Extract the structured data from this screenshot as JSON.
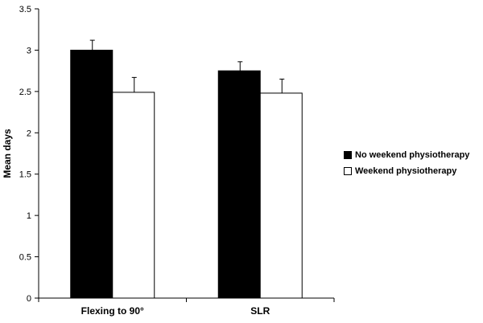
{
  "chart_data": {
    "type": "bar",
    "title": "",
    "xlabel": "",
    "ylabel": "Mean days",
    "categories": [
      "Flexing to 90°",
      "SLR"
    ],
    "series": [
      {
        "name": "No weekend physiotherapy",
        "values": [
          3.0,
          2.75
        ],
        "errors": [
          0.12,
          0.11
        ],
        "color": "#000000"
      },
      {
        "name": "Weekend physiotherapy",
        "values": [
          2.49,
          2.48
        ],
        "errors": [
          0.18,
          0.17
        ],
        "color": "#ffffff"
      }
    ],
    "ylim": [
      0,
      3.5
    ],
    "yticks": [
      "0",
      "0.5",
      "1",
      "1.5",
      "2",
      "2.5",
      "3",
      "3.5"
    ],
    "grid": false,
    "legend_position": "right"
  }
}
